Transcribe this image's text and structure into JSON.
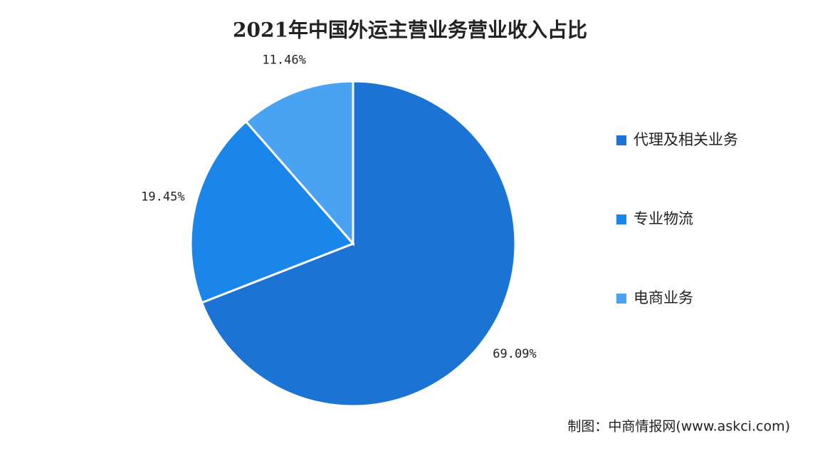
{
  "chart_data": {
    "type": "pie",
    "title": "2021年中国外运主营业务营业收入占比",
    "categories": [
      "代理及相关业务",
      "专业物流",
      "电商业务"
    ],
    "values": [
      69.09,
      19.45,
      11.46
    ],
    "value_labels": [
      "69.09%",
      "19.45%",
      "11.46%"
    ],
    "colors": [
      "#1b73d3",
      "#1a86ea",
      "#4aa3f2"
    ],
    "legend": "right",
    "source": "制图：中商情报网(www.askci.com)"
  }
}
